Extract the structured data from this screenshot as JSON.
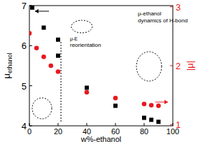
{
  "chart_data": {
    "type": "scatter",
    "x_label": "w%-ethanol",
    "y_label": "μethanol",
    "y2_label": "|μ|",
    "xlim": [
      0,
      100
    ],
    "xticks": [
      0,
      20,
      40,
      60,
      80,
      100
    ],
    "ylim": [
      4,
      7
    ],
    "yticks": [
      4,
      5,
      6,
      7
    ],
    "y2lim": [
      0.98,
      3.02
    ],
    "y2ticks": [
      1,
      2,
      3
    ],
    "annotations": [
      "μ-ethanol",
      "dynamics of H-bond",
      "μ-E",
      "reorientation"
    ],
    "series": [
      {
        "name": "μ-ethanol",
        "color": "#000000",
        "marker": "square",
        "x": [
          2,
          10,
          20,
          20,
          40,
          60,
          80,
          85,
          90
        ],
        "values": [
          6.95,
          6.45,
          6.15,
          5.75,
          4.95,
          4.5,
          4.2,
          4.15,
          4.1
        ]
      },
      {
        "name": "|μ|",
        "color": "#e8171f",
        "marker": "circle",
        "axis": "y2",
        "x": [
          0,
          5,
          10,
          15,
          20,
          40,
          60,
          80,
          85,
          90
        ],
        "values": [
          2.55,
          2.3,
          2.15,
          2.0,
          1.9,
          1.55,
          1.45,
          1.35,
          1.33,
          1.32
        ]
      }
    ]
  }
}
